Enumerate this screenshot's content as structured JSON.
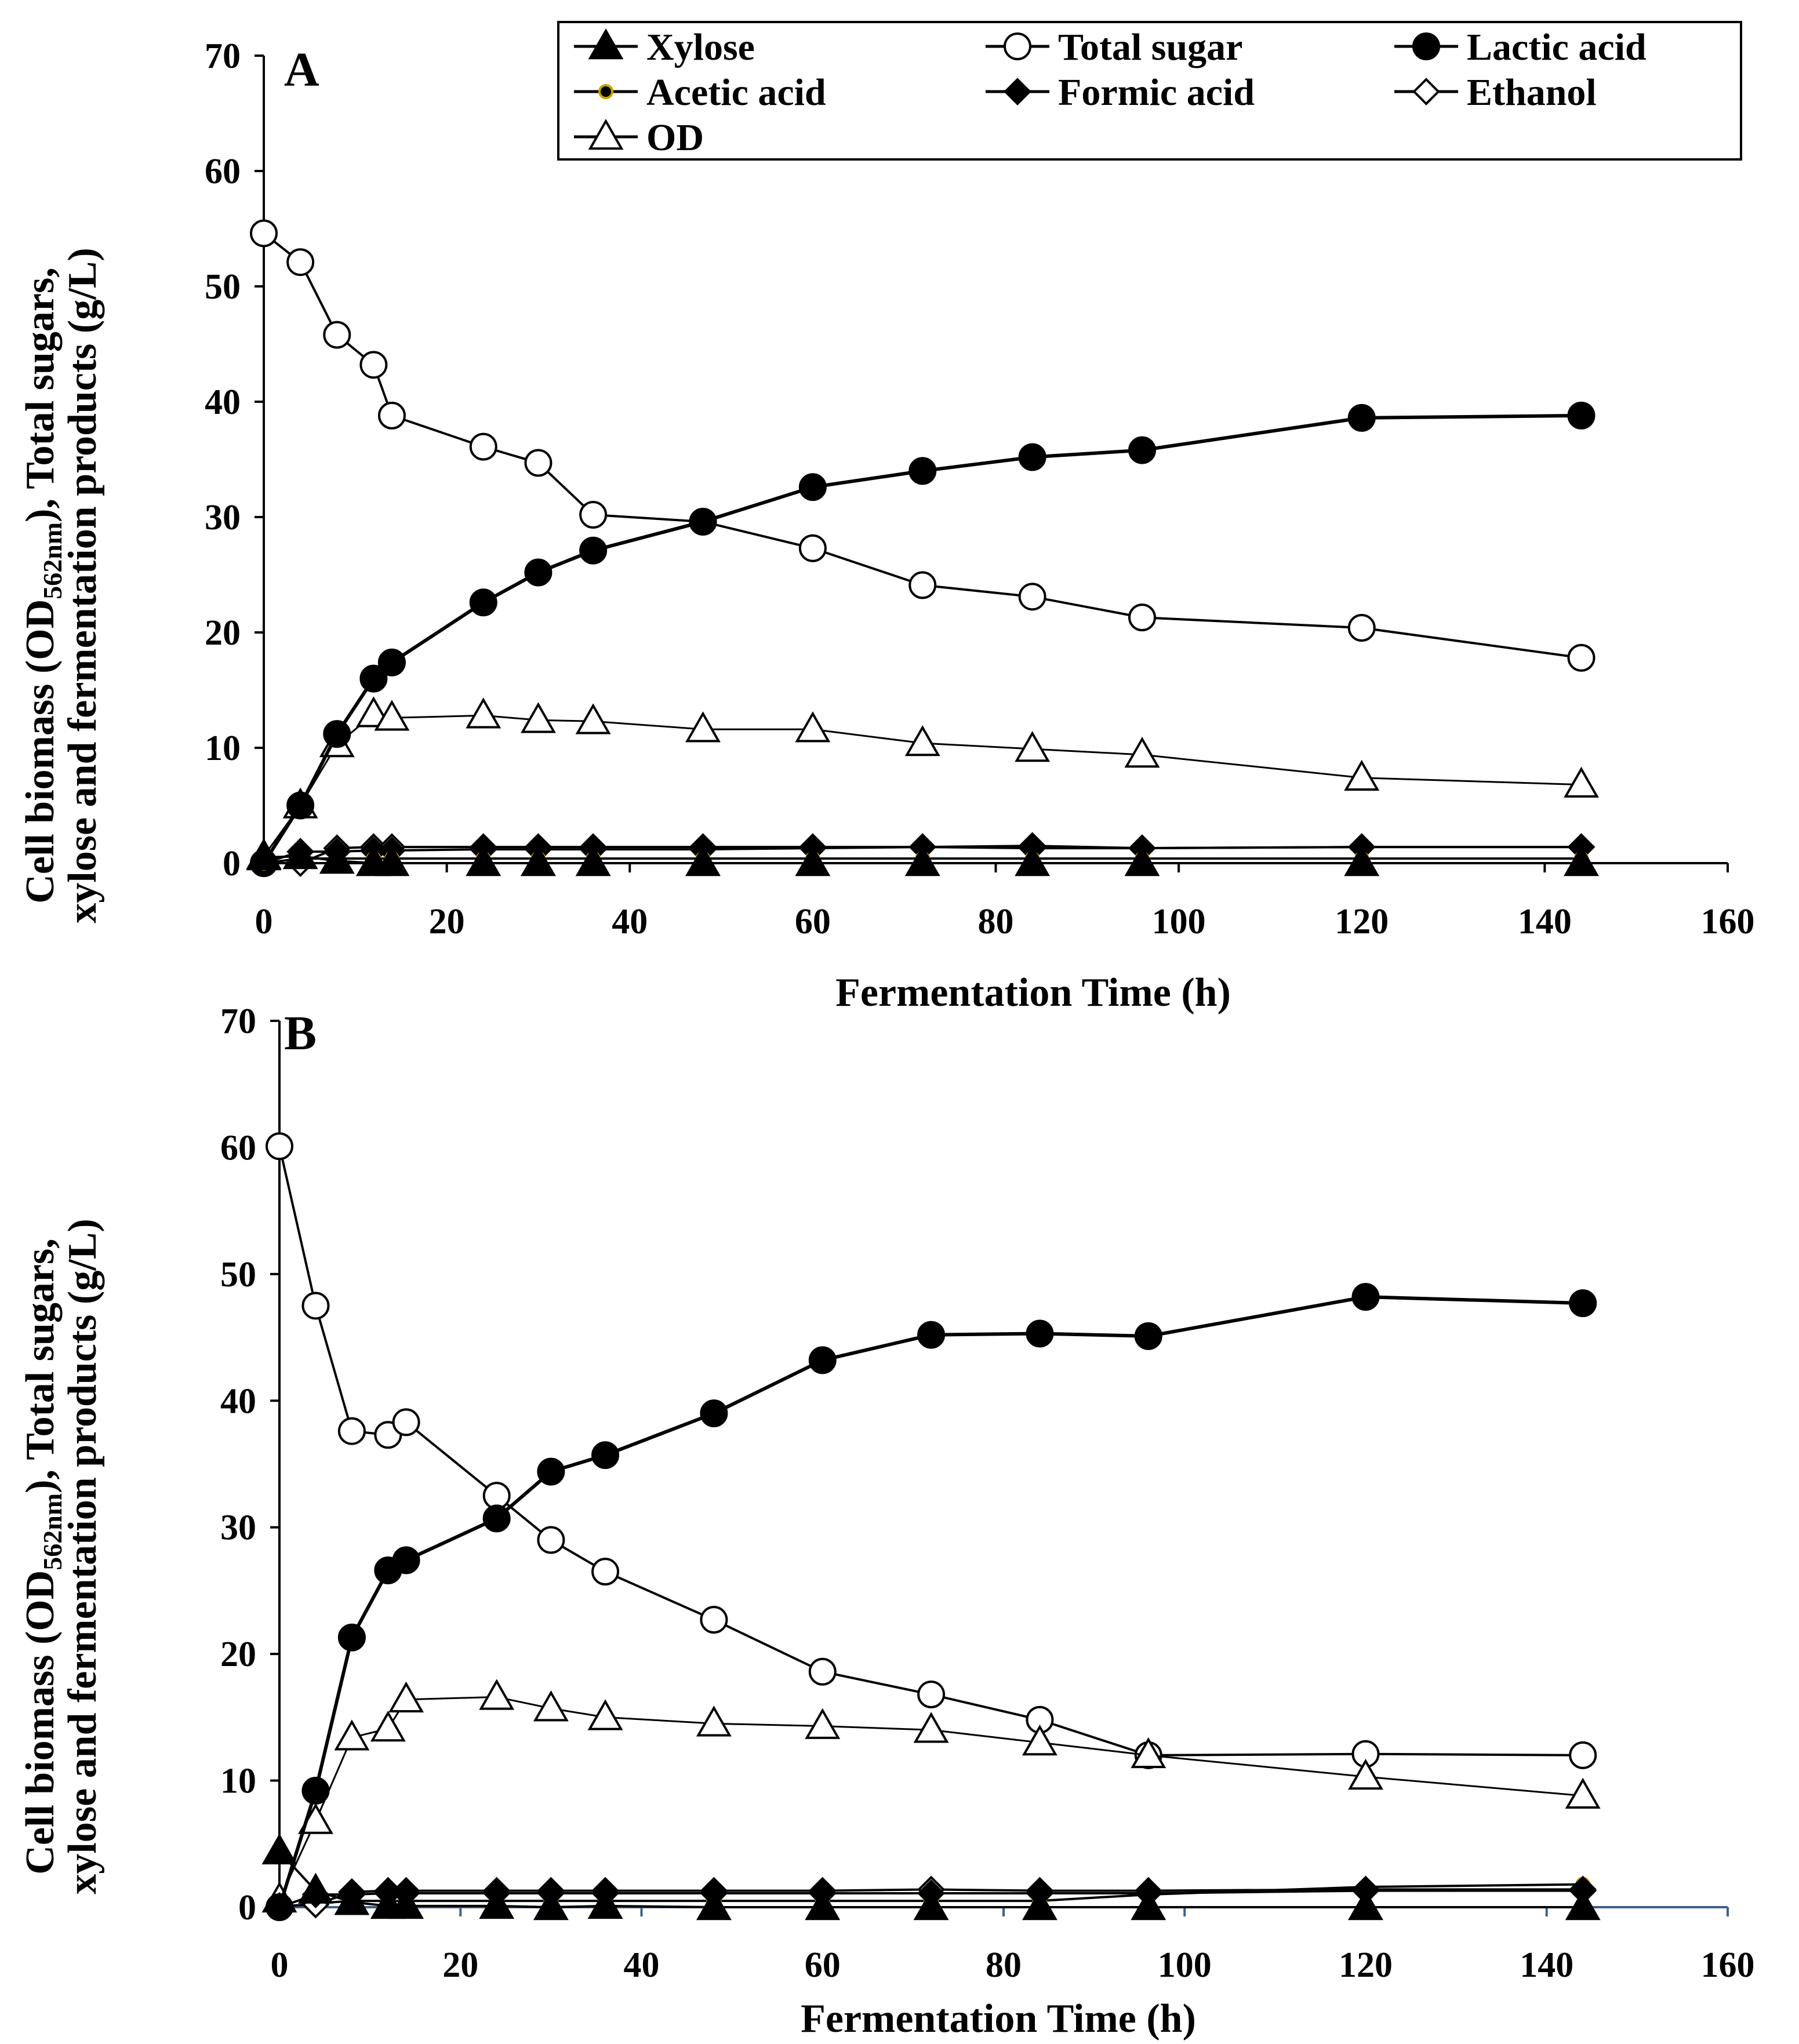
{
  "chart_data": [
    {
      "type": "line",
      "panel_label": "A",
      "xlabel": "Fermentation Time (h)",
      "ylabel_line1": "Cell biomass (OD",
      "ylabel_sub": "562nm",
      "ylabel_rest": "),  Total sugars,",
      "ylabel_line2": "xylose and fermentation products (g/L)",
      "xlim": [
        0,
        160
      ],
      "ylim": [
        0,
        70
      ],
      "xticks": [
        "0",
        "20",
        "40",
        "60",
        "80",
        "100",
        "120",
        "140",
        "160"
      ],
      "yticks": [
        "0",
        "10",
        "20",
        "30",
        "40",
        "50",
        "60",
        "70"
      ],
      "legend": [
        "Xylose",
        "Total sugar",
        "Lactic acid",
        "Acetic acid",
        "Formic acid",
        "Ethanol",
        "OD"
      ],
      "series": [
        {
          "name": "Xylose",
          "marker": "triangle-filled",
          "x": [
            0,
            4,
            8,
            12,
            14,
            24,
            30,
            36,
            48,
            60,
            72,
            84,
            96,
            120,
            144
          ],
          "y": [
            0.5,
            0.6,
            0.2,
            0,
            0,
            0,
            0,
            0,
            0,
            0,
            0,
            0,
            0,
            0,
            0
          ]
        },
        {
          "name": "Total sugar",
          "marker": "circle-open",
          "x": [
            0,
            4,
            8,
            12,
            14,
            24,
            30,
            36,
            48,
            60,
            72,
            84,
            96,
            120,
            144
          ],
          "y": [
            54.6,
            52.1,
            45.8,
            43.2,
            38.8,
            36.1,
            34.7,
            30.2,
            29.6,
            27.3,
            24.1,
            23.1,
            21.3,
            20.4,
            17.8
          ]
        },
        {
          "name": "Lactic acid",
          "marker": "circle-filled",
          "x": [
            0,
            4,
            8,
            12,
            14,
            24,
            30,
            36,
            48,
            60,
            72,
            84,
            96,
            120,
            144
          ],
          "y": [
            0,
            5.0,
            11.2,
            16.0,
            17.4,
            22.6,
            25.2,
            27.1,
            29.6,
            32.6,
            34.0,
            35.2,
            35.8,
            38.6,
            38.8
          ]
        },
        {
          "name": "Acetic acid",
          "marker": "circle-small",
          "x": [
            0,
            4,
            8,
            12,
            14,
            24,
            30,
            36,
            48,
            60,
            72,
            84,
            96,
            120,
            144
          ],
          "y": [
            0,
            0.4,
            0.4,
            0.4,
            0.4,
            0.4,
            0.4,
            0.4,
            0.4,
            0.4,
            0.4,
            0.4,
            0.4,
            0.4,
            0.4
          ]
        },
        {
          "name": "Formic acid",
          "marker": "diamond-filled",
          "x": [
            0,
            4,
            8,
            12,
            14,
            24,
            30,
            36,
            48,
            60,
            72,
            84,
            96,
            120,
            144
          ],
          "y": [
            0,
            1.0,
            1.0,
            1.1,
            1.1,
            1.2,
            1.2,
            1.2,
            1.2,
            1.3,
            1.4,
            1.5,
            1.3,
            1.4,
            1.4
          ]
        },
        {
          "name": "Ethanol",
          "marker": "diamond-open",
          "x": [
            0,
            4,
            8,
            12,
            14,
            24,
            30,
            36,
            48,
            60,
            72,
            84,
            96,
            120,
            144
          ],
          "y": [
            0,
            0,
            1.3,
            1.4,
            1.4,
            1.4,
            1.4,
            1.4,
            1.4,
            1.4,
            1.4,
            1.3,
            1.3,
            1.4,
            1.4
          ]
        },
        {
          "name": "OD",
          "marker": "triangle-open",
          "x": [
            0,
            4,
            8,
            12,
            14,
            24,
            30,
            36,
            48,
            60,
            72,
            84,
            96,
            120,
            144
          ],
          "y": [
            0.6,
            5.0,
            10.3,
            12.9,
            12.6,
            12.8,
            12.4,
            12.3,
            11.6,
            11.6,
            10.4,
            9.9,
            9.4,
            7.4,
            6.8
          ]
        }
      ]
    },
    {
      "type": "line",
      "panel_label": "B",
      "xlabel": "Fermentation Time (h)",
      "ylabel_line1": "Cell biomass (OD",
      "ylabel_sub": "562nm",
      "ylabel_rest": "),  Total sugars,",
      "ylabel_line2": "xylose and fermentation products (g/L)",
      "xlim": [
        0,
        160
      ],
      "ylim": [
        0,
        70
      ],
      "xticks": [
        "0",
        "20",
        "40",
        "60",
        "80",
        "100",
        "120",
        "140",
        "160"
      ],
      "yticks": [
        "0",
        "10",
        "20",
        "30",
        "40",
        "50",
        "60",
        "70"
      ],
      "series": [
        {
          "name": "Xylose",
          "marker": "triangle-filled",
          "x": [
            0,
            4,
            8,
            12,
            14,
            24,
            30,
            36,
            48,
            60,
            72,
            84,
            96,
            120,
            144
          ],
          "y": [
            4.4,
            1.3,
            0.4,
            0.1,
            0.1,
            0.1,
            0,
            0.1,
            0,
            0,
            0,
            0,
            0,
            0,
            0
          ]
        },
        {
          "name": "Total sugar",
          "marker": "circle-open",
          "x": [
            0,
            4,
            8,
            12,
            14,
            24,
            30,
            36,
            48,
            60,
            72,
            84,
            96,
            120,
            144
          ],
          "y": [
            60.1,
            47.5,
            37.6,
            37.3,
            38.3,
            32.5,
            29.0,
            26.5,
            22.7,
            18.6,
            16.8,
            14.8,
            12.0,
            12.1,
            12.0
          ]
        },
        {
          "name": "Lactic acid",
          "marker": "circle-filled",
          "x": [
            0,
            4,
            8,
            12,
            14,
            24,
            30,
            36,
            48,
            60,
            72,
            84,
            96,
            120,
            144
          ],
          "y": [
            0,
            9.2,
            21.3,
            26.6,
            27.4,
            30.7,
            34.4,
            35.7,
            39.0,
            43.2,
            45.2,
            45.3,
            45.1,
            48.2,
            47.7
          ]
        },
        {
          "name": "Acetic acid",
          "marker": "circle-small",
          "x": [
            0,
            4,
            8,
            12,
            14,
            24,
            30,
            36,
            48,
            60,
            72,
            84,
            96,
            120,
            144
          ],
          "y": [
            0,
            0.3,
            0.5,
            0.5,
            0.5,
            0.5,
            0.5,
            0.5,
            0.5,
            0.5,
            0.5,
            0.5,
            1.0,
            1.6,
            1.8
          ]
        },
        {
          "name": "Formic acid",
          "marker": "diamond-filled",
          "x": [
            0,
            4,
            8,
            12,
            14,
            24,
            30,
            36,
            48,
            60,
            72,
            84,
            96,
            120,
            144
          ],
          "y": [
            0,
            1.0,
            1.0,
            1.1,
            1.1,
            1.1,
            1.1,
            1.1,
            1.1,
            1.1,
            1.1,
            1.1,
            1.1,
            1.3,
            1.3
          ]
        },
        {
          "name": "Ethanol",
          "marker": "diamond-open",
          "x": [
            0,
            4,
            8,
            12,
            14,
            24,
            30,
            36,
            48,
            60,
            72,
            84,
            96,
            120,
            144
          ],
          "y": [
            0.1,
            0.2,
            1.2,
            1.3,
            1.3,
            1.3,
            1.3,
            1.3,
            1.3,
            1.3,
            1.4,
            1.3,
            1.3,
            1.4,
            1.4
          ]
        },
        {
          "name": "OD",
          "marker": "triangle-open",
          "x": [
            0,
            4,
            8,
            12,
            14,
            24,
            30,
            36,
            48,
            60,
            72,
            84,
            96,
            120,
            144
          ],
          "y": [
            0.6,
            6.8,
            13.4,
            14.1,
            16.4,
            16.6,
            15.7,
            15.0,
            14.5,
            14.3,
            14.0,
            13.0,
            12.0,
            10.3,
            8.8
          ]
        }
      ]
    }
  ]
}
